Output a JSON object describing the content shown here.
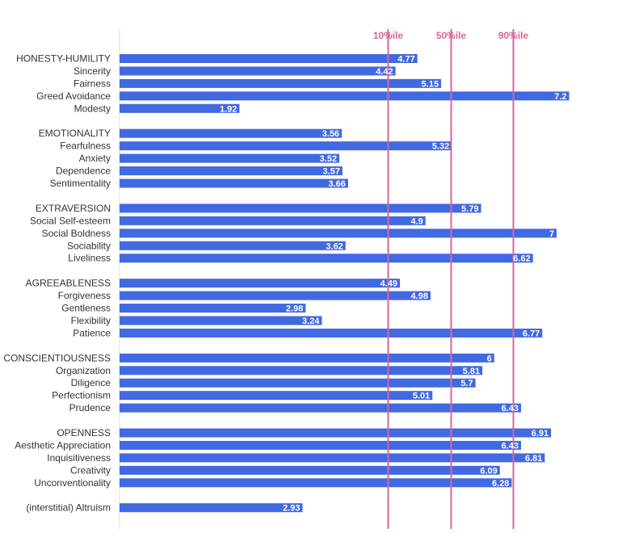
{
  "chart_data": {
    "type": "bar",
    "orientation": "horizontal",
    "xlim": [
      0,
      8
    ],
    "grid": false,
    "colors": {
      "bar": "#4169e1",
      "reference": "#d9669a",
      "axis": "#dddddd",
      "text": "#333333",
      "value_text": "#ffffff"
    },
    "reference_lines": [
      {
        "label": "10%ile",
        "value": 4.3
      },
      {
        "label": "50%ile",
        "value": 5.3
      },
      {
        "label": "90%ile",
        "value": 6.3
      }
    ],
    "rows": [
      {
        "label": "HONESTY-HUMILITY",
        "value": 4.77,
        "group": 0
      },
      {
        "label": "Sincerity",
        "value": 4.42,
        "group": 0
      },
      {
        "label": "Fairness",
        "value": 5.15,
        "group": 0
      },
      {
        "label": "Greed Avoidance",
        "value": 7.2,
        "group": 0
      },
      {
        "label": "Modesty",
        "value": 1.92,
        "group": 0
      },
      {
        "label": "EMOTIONALITY",
        "value": 3.56,
        "group": 1
      },
      {
        "label": "Fearfulness",
        "value": 5.32,
        "group": 1
      },
      {
        "label": "Anxiety",
        "value": 3.52,
        "group": 1
      },
      {
        "label": "Dependence",
        "value": 3.57,
        "group": 1
      },
      {
        "label": "Sentimentality",
        "value": 3.66,
        "group": 1
      },
      {
        "label": "EXTRAVERSION",
        "value": 5.79,
        "group": 2
      },
      {
        "label": "Social Self-esteem",
        "value": 4.9,
        "group": 2
      },
      {
        "label": "Social Boldness",
        "value": 7,
        "group": 2
      },
      {
        "label": "Sociability",
        "value": 3.62,
        "group": 2
      },
      {
        "label": "Liveliness",
        "value": 6.62,
        "group": 2
      },
      {
        "label": "AGREEABLENESS",
        "value": 4.49,
        "group": 3
      },
      {
        "label": "Forgiveness",
        "value": 4.98,
        "group": 3
      },
      {
        "label": "Gentleness",
        "value": 2.98,
        "group": 3
      },
      {
        "label": "Flexibility",
        "value": 3.24,
        "group": 3
      },
      {
        "label": "Patience",
        "value": 6.77,
        "group": 3
      },
      {
        "label": "CONSCIENTIOUSNESS",
        "value": 6,
        "group": 4
      },
      {
        "label": "Organization",
        "value": 5.81,
        "group": 4
      },
      {
        "label": "Diligence",
        "value": 5.7,
        "group": 4
      },
      {
        "label": "Perfectionism",
        "value": 5.01,
        "group": 4
      },
      {
        "label": "Prudence",
        "value": 6.43,
        "group": 4
      },
      {
        "label": "OPENNESS",
        "value": 6.91,
        "group": 5
      },
      {
        "label": "Aesthetic Appreciation",
        "value": 6.43,
        "group": 5
      },
      {
        "label": "Inquisitiveness",
        "value": 6.81,
        "group": 5
      },
      {
        "label": "Creativity",
        "value": 6.09,
        "group": 5
      },
      {
        "label": "Unconventionality",
        "value": 6.28,
        "group": 5
      },
      {
        "label": "(interstitial) Altruism",
        "value": 2.93,
        "group": 6
      }
    ]
  }
}
